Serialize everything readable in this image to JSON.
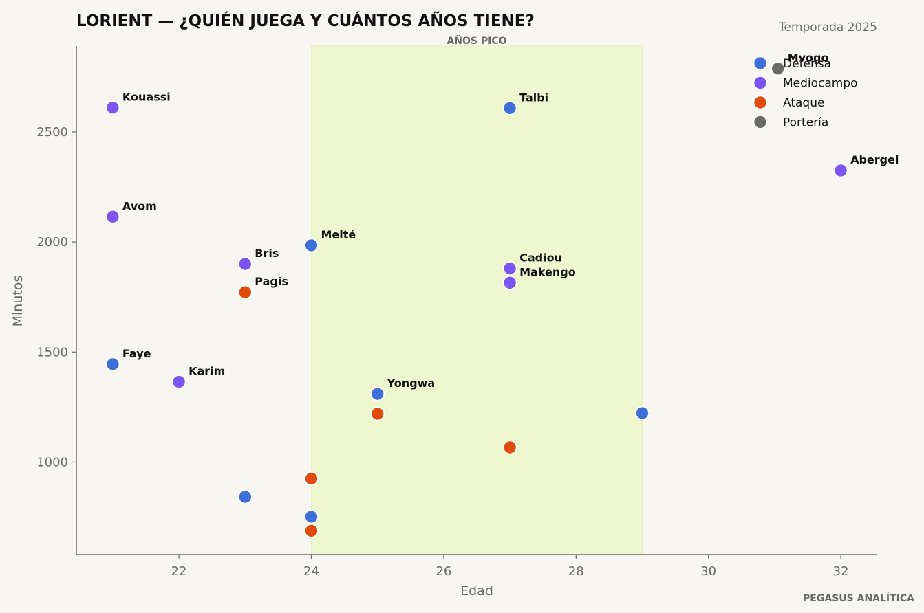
{
  "chart_data": {
    "type": "scatter",
    "title": "LORIENT — ¿QUIÉN JUEGA Y CUÁNTOS AÑOS TIENE?",
    "subtitle": "Temporada 2025",
    "xlabel": "Edad",
    "ylabel": "Minutos",
    "xlim": [
      20.45,
      32.55
    ],
    "ylim": [
      580,
      2890
    ],
    "xticks": [
      22,
      24,
      26,
      28,
      30,
      32
    ],
    "yticks": [
      1000,
      1500,
      2000,
      2500
    ],
    "grid": false,
    "legend_position": "top-right",
    "peak_band": {
      "label": "AÑOS PICO",
      "x_from": 24,
      "x_to": 29,
      "color": "#eef7cf"
    },
    "colors": {
      "Defensa": "#3d6fd6",
      "Mediocampo": "#7b55f0",
      "Ataque": "#e04a0b",
      "Portería": "#6b6b66"
    },
    "legend": [
      "Defensa",
      "Mediocampo",
      "Ataque",
      "Portería"
    ],
    "points": [
      {
        "name": "Kouassi",
        "x": 21,
        "y": 2610,
        "group": "Mediocampo"
      },
      {
        "name": "Avom",
        "x": 21,
        "y": 2115,
        "group": "Mediocampo"
      },
      {
        "name": "Faye",
        "x": 21,
        "y": 1445,
        "group": "Defensa"
      },
      {
        "name": "Karim",
        "x": 22,
        "y": 1365,
        "group": "Mediocampo"
      },
      {
        "name": "Bris",
        "x": 23,
        "y": 1900,
        "group": "Mediocampo"
      },
      {
        "name": "Pagis",
        "x": 23,
        "y": 1772,
        "group": "Ataque"
      },
      {
        "name": "",
        "x": 23,
        "y": 842,
        "group": "Defensa"
      },
      {
        "name": "Meité",
        "x": 24,
        "y": 1985,
        "group": "Defensa"
      },
      {
        "name": "",
        "x": 24,
        "y": 925,
        "group": "Ataque"
      },
      {
        "name": "",
        "x": 24,
        "y": 752,
        "group": "Defensa"
      },
      {
        "name": "",
        "x": 24,
        "y": 688,
        "group": "Ataque"
      },
      {
        "name": "Yongwa",
        "x": 25,
        "y": 1310,
        "group": "Defensa"
      },
      {
        "name": "",
        "x": 25,
        "y": 1220,
        "group": "Ataque"
      },
      {
        "name": "Talbi",
        "x": 27,
        "y": 2608,
        "group": "Defensa"
      },
      {
        "name": "Cadiou",
        "x": 27,
        "y": 1880,
        "group": "Mediocampo"
      },
      {
        "name": "Makengo",
        "x": 27,
        "y": 1815,
        "group": "Mediocampo"
      },
      {
        "name": "",
        "x": 27,
        "y": 1067,
        "group": "Ataque"
      },
      {
        "name": "",
        "x": 29,
        "y": 1223,
        "group": "Defensa"
      },
      {
        "name": "Abergel",
        "x": 32,
        "y": 2325,
        "group": "Mediocampo"
      },
      {
        "name": "Mvogo",
        "x": 31.05,
        "y": 2788,
        "group": "Portería"
      }
    ]
  },
  "footer": "PEGASUS ANALÍTICA"
}
